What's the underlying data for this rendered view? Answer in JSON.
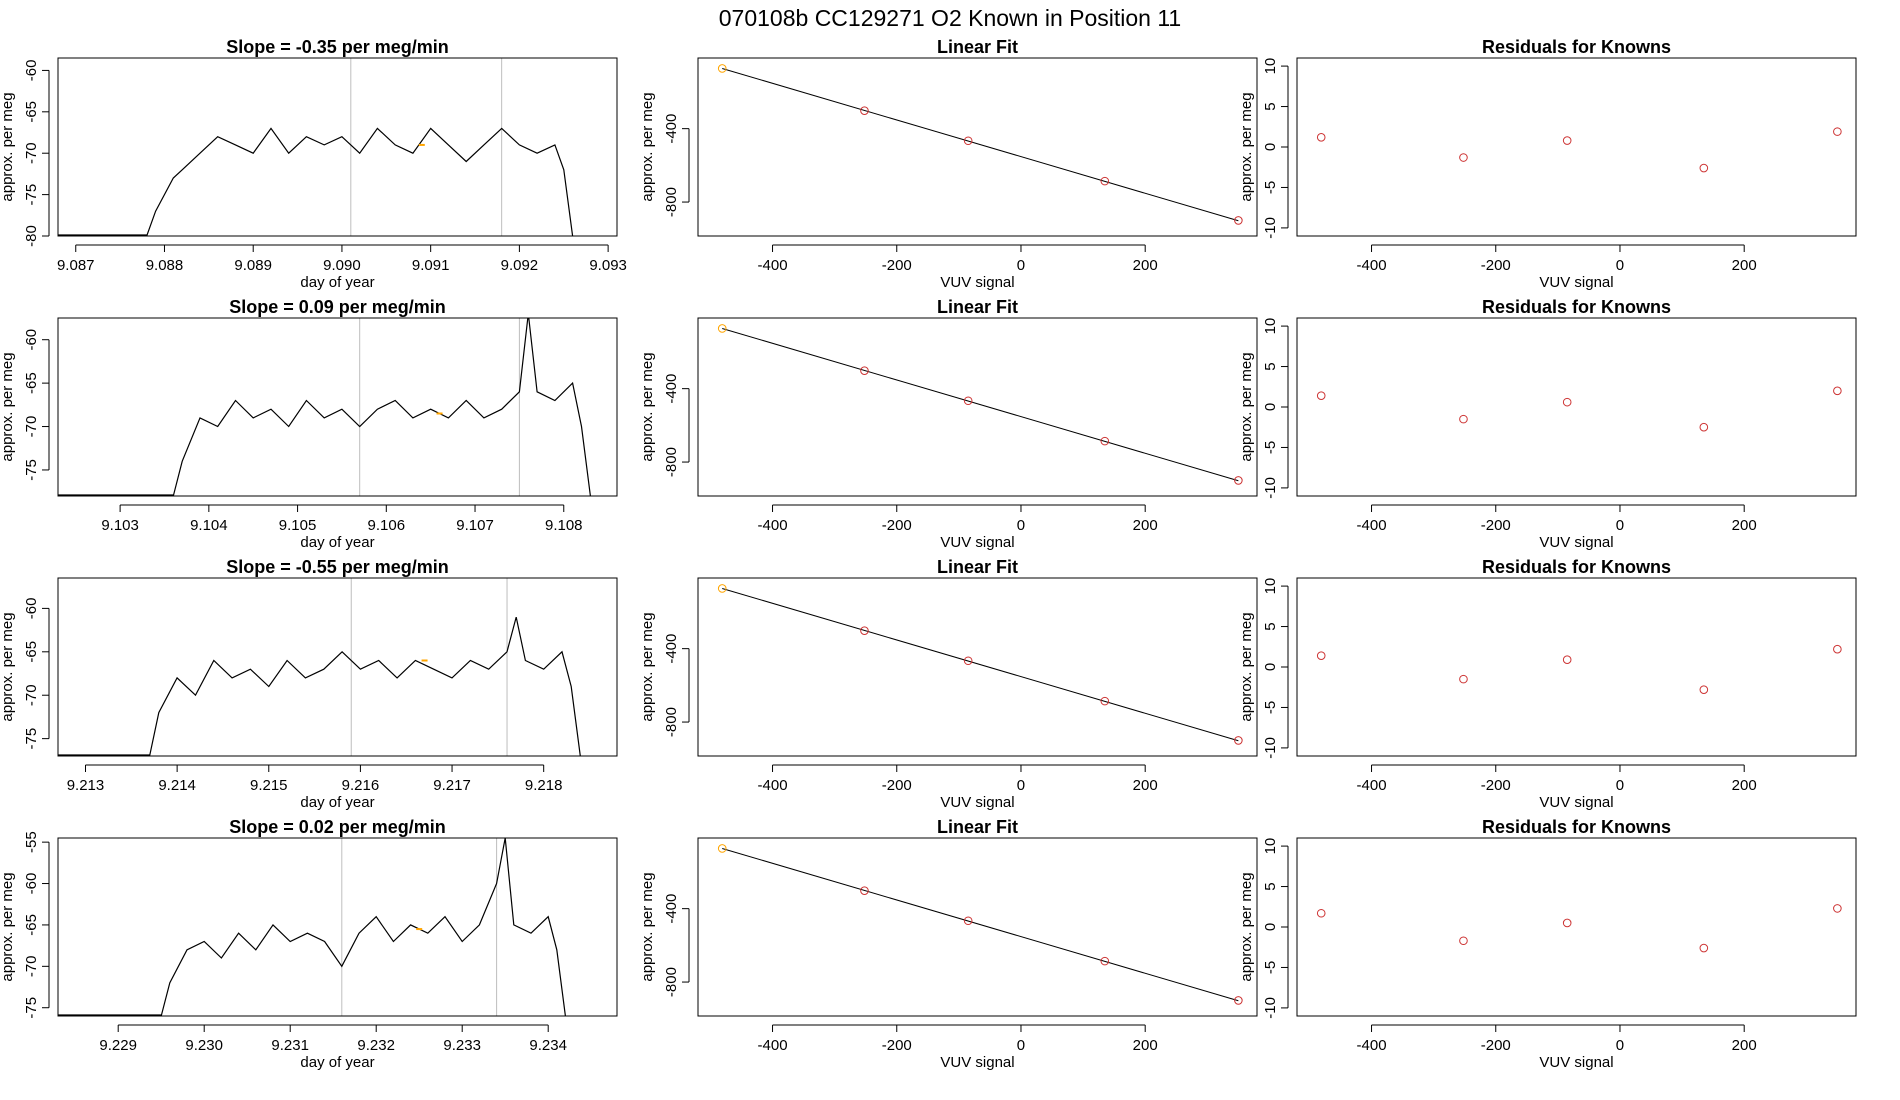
{
  "figure": {
    "title": "070108b      CC129271    O2 Known in Position  11"
  },
  "colors": {
    "trace": "#000000",
    "marker_line": "#bebebe",
    "highlight_point": "#ffa500",
    "residual_points": "#cd3333",
    "fit_points": "#cd3333",
    "fit_first_point": "#ffa500",
    "fit_line": "#000000"
  },
  "rows": [
    {
      "timeseries": {
        "type": "line",
        "title": "Slope =  -0.35  per meg/min",
        "xlabel": "day of year",
        "ylabel": "approx. per meg",
        "xlim": [
          9.0868,
          9.0931
        ],
        "ylim": [
          -80,
          -58.5
        ],
        "xticks": [
          "9.087",
          "9.088",
          "9.089",
          "9.090",
          "9.091",
          "9.092",
          "9.093"
        ],
        "yticks": [
          "-60",
          "-65",
          "-70",
          "-75",
          "-80"
        ],
        "markers_x": [
          9.0901,
          9.0918
        ],
        "highlight": {
          "x": 9.0909,
          "y": -69.0
        },
        "x": [
          9.0878,
          9.0879,
          9.0881,
          9.0882,
          9.0884,
          9.0886,
          9.0888,
          9.089,
          9.0892,
          9.0894,
          9.0896,
          9.0898,
          9.09,
          9.0902,
          9.0904,
          9.0906,
          9.0908,
          9.091,
          9.0912,
          9.0914,
          9.0916,
          9.0918,
          9.092,
          9.0922,
          9.0924,
          9.0925,
          9.0926
        ],
        "y": [
          -80,
          -77,
          -73,
          -72,
          -70,
          -68,
          -69,
          -70,
          -67,
          -70,
          -68,
          -69,
          -68,
          -70,
          -67,
          -69,
          -70,
          -67,
          -69,
          -71,
          -69,
          -67,
          -69,
          -70,
          -69,
          -72,
          -80
        ]
      },
      "fit": {
        "type": "scatter",
        "title": "Linear Fit",
        "xlabel": "VUV signal",
        "ylabel": "approx. per meg",
        "xlim": [
          -520,
          380
        ],
        "ylim": [
          -985,
          -15
        ],
        "xticks": [
          "-400",
          "-200",
          "0",
          "200"
        ],
        "yticks": [
          "-400",
          "-800"
        ],
        "points_x": [
          -481,
          -252,
          -85,
          135,
          350
        ],
        "points_y": [
          -72,
          -302,
          -466,
          -686,
          -900
        ],
        "line": [
          [
            -481,
            -72
          ],
          [
            350,
            -902
          ]
        ]
      },
      "residuals": {
        "type": "scatter",
        "title": "Residuals for Knowns",
        "xlabel": "VUV signal",
        "ylabel": "approx. per meg",
        "xlim": [
          -520,
          380
        ],
        "ylim": [
          -11,
          11
        ],
        "xticks": [
          "-400",
          "-200",
          "0",
          "200"
        ],
        "yticks": [
          "10",
          "5",
          "0",
          "-5",
          "-10"
        ],
        "points_x": [
          -481,
          -252,
          -85,
          135,
          350
        ],
        "points_y": [
          1.2,
          -1.3,
          0.8,
          -2.6,
          1.9
        ]
      }
    },
    {
      "timeseries": {
        "type": "line",
        "title": "Slope =  0.09  per meg/min",
        "xlabel": "day of year",
        "ylabel": "approx. per meg",
        "xlim": [
          9.1023,
          9.1086
        ],
        "ylim": [
          -78,
          -57.5
        ],
        "xticks": [
          "9.103",
          "9.104",
          "9.105",
          "9.106",
          "9.107",
          "9.108"
        ],
        "yticks": [
          "-60",
          "-65",
          "-70",
          "-75"
        ],
        "markers_x": [
          9.1057,
          9.1075
        ],
        "highlight": {
          "x": 9.1066,
          "y": -68.5
        },
        "x": [
          9.1036,
          9.1037,
          9.1039,
          9.1041,
          9.1043,
          9.1045,
          9.1047,
          9.1049,
          9.1051,
          9.1053,
          9.1055,
          9.1057,
          9.1059,
          9.1061,
          9.1063,
          9.1065,
          9.1067,
          9.1069,
          9.1071,
          9.1073,
          9.1075,
          9.1076,
          9.1077,
          9.1079,
          9.1081,
          9.1082,
          9.1083
        ],
        "y": [
          -78,
          -74,
          -69,
          -70,
          -67,
          -69,
          -68,
          -70,
          -67,
          -69,
          -68,
          -70,
          -68,
          -67,
          -69,
          -68,
          -69,
          -67,
          -69,
          -68,
          -66,
          -57,
          -66,
          -67,
          -65,
          -70,
          -78
        ]
      },
      "fit": {
        "type": "scatter",
        "title": "Linear Fit",
        "xlabel": "VUV signal",
        "ylabel": "approx. per meg",
        "xlim": [
          -520,
          380
        ],
        "ylim": [
          -985,
          -15
        ],
        "xticks": [
          "-400",
          "-200",
          "0",
          "200"
        ],
        "yticks": [
          "-400",
          "-800"
        ],
        "points_x": [
          -481,
          -252,
          -85,
          135,
          350
        ],
        "points_y": [
          -72,
          -302,
          -466,
          -686,
          -900
        ],
        "line": [
          [
            -481,
            -72
          ],
          [
            350,
            -902
          ]
        ]
      },
      "residuals": {
        "type": "scatter",
        "title": "Residuals for Knowns",
        "xlabel": "VUV signal",
        "ylabel": "approx. per meg",
        "xlim": [
          -520,
          380
        ],
        "ylim": [
          -11,
          11
        ],
        "xticks": [
          "-400",
          "-200",
          "0",
          "200"
        ],
        "yticks": [
          "10",
          "5",
          "0",
          "-5",
          "-10"
        ],
        "points_x": [
          -481,
          -252,
          -85,
          135,
          350
        ],
        "points_y": [
          1.4,
          -1.5,
          0.6,
          -2.5,
          2.0
        ]
      }
    },
    {
      "timeseries": {
        "type": "line",
        "title": "Slope =  -0.55  per meg/min",
        "xlabel": "day of year",
        "ylabel": "approx. per meg",
        "xlim": [
          9.2127,
          9.2188
        ],
        "ylim": [
          -77,
          -56.5
        ],
        "xticks": [
          "9.213",
          "9.214",
          "9.215",
          "9.216",
          "9.217",
          "9.218"
        ],
        "yticks": [
          "-60",
          "-65",
          "-70",
          "-75"
        ],
        "markers_x": [
          9.2159,
          9.2176
        ],
        "highlight": {
          "x": 9.2167,
          "y": -66.0
        },
        "x": [
          9.2137,
          9.2138,
          9.214,
          9.2142,
          9.2144,
          9.2146,
          9.2148,
          9.215,
          9.2152,
          9.2154,
          9.2156,
          9.2158,
          9.216,
          9.2162,
          9.2164,
          9.2166,
          9.2168,
          9.217,
          9.2172,
          9.2174,
          9.2176,
          9.2177,
          9.2178,
          9.218,
          9.2182,
          9.2183,
          9.2184
        ],
        "y": [
          -77,
          -72,
          -68,
          -70,
          -66,
          -68,
          -67,
          -69,
          -66,
          -68,
          -67,
          -65,
          -67,
          -66,
          -68,
          -66,
          -67,
          -68,
          -66,
          -67,
          -65,
          -61,
          -66,
          -67,
          -65,
          -69,
          -77
        ]
      },
      "fit": {
        "type": "scatter",
        "title": "Linear Fit",
        "xlabel": "VUV signal",
        "ylabel": "approx. per meg",
        "xlim": [
          -520,
          380
        ],
        "ylim": [
          -985,
          -15
        ],
        "xticks": [
          "-400",
          "-200",
          "0",
          "200"
        ],
        "yticks": [
          "-400",
          "-800"
        ],
        "points_x": [
          -481,
          -252,
          -85,
          135,
          350
        ],
        "points_y": [
          -72,
          -302,
          -466,
          -686,
          -900
        ],
        "line": [
          [
            -481,
            -72
          ],
          [
            350,
            -902
          ]
        ]
      },
      "residuals": {
        "type": "scatter",
        "title": "Residuals for Knowns",
        "xlabel": "VUV signal",
        "ylabel": "approx. per meg",
        "xlim": [
          -520,
          380
        ],
        "ylim": [
          -11,
          11
        ],
        "xticks": [
          "-400",
          "-200",
          "0",
          "200"
        ],
        "yticks": [
          "10",
          "5",
          "0",
          "-5",
          "-10"
        ],
        "points_x": [
          -481,
          -252,
          -85,
          135,
          350
        ],
        "points_y": [
          1.4,
          -1.5,
          0.9,
          -2.8,
          2.2
        ]
      }
    },
    {
      "timeseries": {
        "type": "line",
        "title": "Slope =  0.02  per meg/min",
        "xlabel": "day of year",
        "ylabel": "approx. per meg",
        "xlim": [
          9.2283,
          9.2348
        ],
        "ylim": [
          -76,
          -54.5
        ],
        "xticks": [
          "9.229",
          "9.230",
          "9.231",
          "9.232",
          "9.233",
          "9.234"
        ],
        "yticks": [
          "-55",
          "-60",
          "-65",
          "-70",
          "-75"
        ],
        "markers_x": [
          9.2316,
          9.2334
        ],
        "highlight": {
          "x": 9.2325,
          "y": -65.5
        },
        "x": [
          9.2295,
          9.2296,
          9.2298,
          9.23,
          9.2302,
          9.2304,
          9.2306,
          9.2308,
          9.231,
          9.2312,
          9.2314,
          9.2316,
          9.2318,
          9.232,
          9.2322,
          9.2324,
          9.2326,
          9.2328,
          9.233,
          9.2332,
          9.2334,
          9.2335,
          9.2336,
          9.2338,
          9.234,
          9.2341,
          9.2342
        ],
        "y": [
          -76,
          -72,
          -68,
          -67,
          -69,
          -66,
          -68,
          -65,
          -67,
          -66,
          -67,
          -70,
          -66,
          -64,
          -67,
          -65,
          -66,
          -64,
          -67,
          -65,
          -60,
          -54.5,
          -65,
          -66,
          -64,
          -68,
          -76
        ]
      },
      "fit": {
        "type": "scatter",
        "title": "Linear Fit",
        "xlabel": "VUV signal",
        "ylabel": "approx. per meg",
        "xlim": [
          -520,
          380
        ],
        "ylim": [
          -985,
          -15
        ],
        "xticks": [
          "-400",
          "-200",
          "0",
          "200"
        ],
        "yticks": [
          "-400",
          "-800"
        ],
        "points_x": [
          -481,
          -252,
          -85,
          135,
          350
        ],
        "points_y": [
          -72,
          -302,
          -466,
          -686,
          -900
        ],
        "line": [
          [
            -481,
            -72
          ],
          [
            350,
            -902
          ]
        ]
      },
      "residuals": {
        "type": "scatter",
        "title": "Residuals for Knowns",
        "xlabel": "VUV signal",
        "ylabel": "approx. per meg",
        "xlim": [
          -520,
          380
        ],
        "ylim": [
          -11,
          11
        ],
        "xticks": [
          "-400",
          "-200",
          "0",
          "200"
        ],
        "yticks": [
          "10",
          "5",
          "0",
          "-5",
          "-10"
        ],
        "points_x": [
          -481,
          -252,
          -85,
          135,
          350
        ],
        "points_y": [
          1.7,
          -1.7,
          0.5,
          -2.6,
          2.3
        ]
      }
    }
  ]
}
